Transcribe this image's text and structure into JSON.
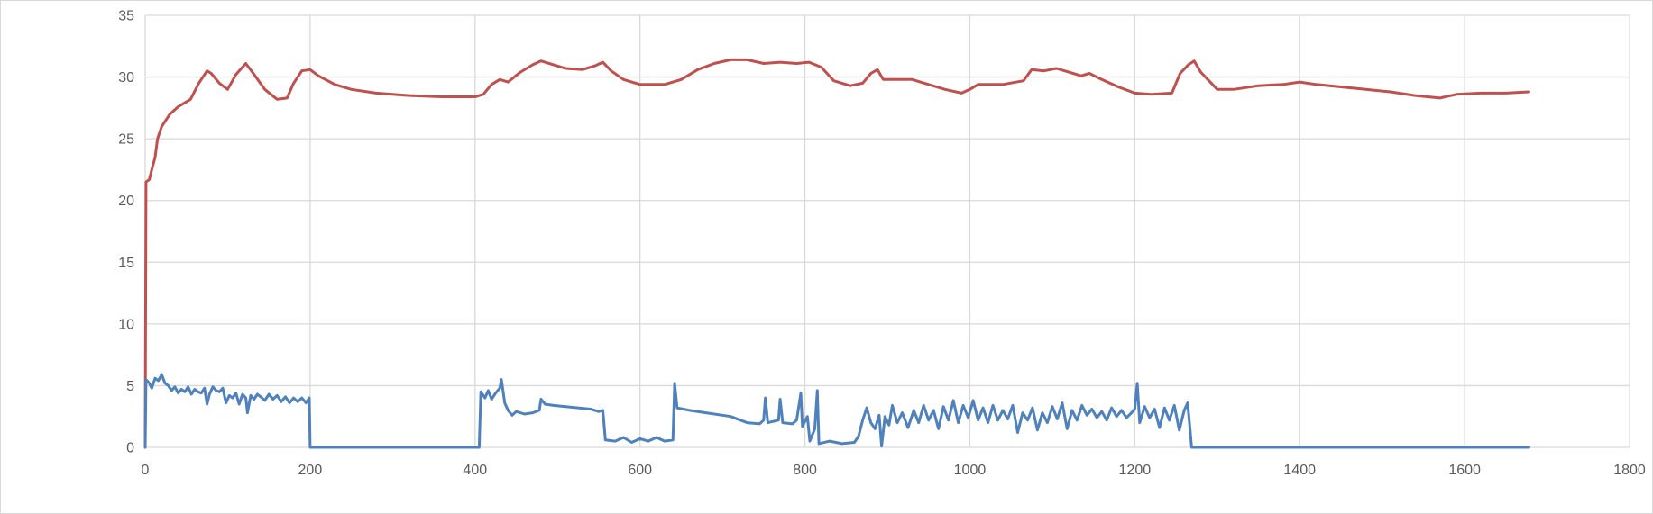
{
  "chart_data": {
    "type": "line",
    "title": "",
    "xlabel": "",
    "ylabel": "",
    "xlim": [
      0,
      1800
    ],
    "ylim": [
      0,
      35
    ],
    "x_ticks": [
      0,
      200,
      400,
      600,
      800,
      1000,
      1200,
      1400,
      1600,
      1800
    ],
    "y_ticks": [
      0,
      5,
      10,
      15,
      20,
      25,
      30,
      35
    ],
    "x_tick_labels": [
      "0",
      "200",
      "400",
      "600",
      "800",
      "1000",
      "1200",
      "1400",
      "1600",
      "1800"
    ],
    "y_tick_labels": [
      "0",
      "5",
      "10",
      "15",
      "20",
      "25",
      "30",
      "35"
    ],
    "grid": true,
    "legend": "none",
    "series": [
      {
        "color": "#c0504d",
        "points": [
          [
            0,
            0
          ],
          [
            1,
            21.5
          ],
          [
            5,
            21.7
          ],
          [
            8,
            22.5
          ],
          [
            12,
            23.5
          ],
          [
            15,
            25
          ],
          [
            20,
            26
          ],
          [
            30,
            27
          ],
          [
            40,
            27.6
          ],
          [
            55,
            28.2
          ],
          [
            65,
            29.5
          ],
          [
            75,
            30.5
          ],
          [
            80,
            30.3
          ],
          [
            90,
            29.5
          ],
          [
            100,
            29.0
          ],
          [
            110,
            30.2
          ],
          [
            122,
            31.1
          ],
          [
            130,
            30.4
          ],
          [
            145,
            29.0
          ],
          [
            160,
            28.2
          ],
          [
            172,
            28.3
          ],
          [
            180,
            29.5
          ],
          [
            190,
            30.5
          ],
          [
            200,
            30.6
          ],
          [
            210,
            30.1
          ],
          [
            230,
            29.4
          ],
          [
            250,
            29.0
          ],
          [
            280,
            28.7
          ],
          [
            320,
            28.5
          ],
          [
            360,
            28.4
          ],
          [
            400,
            28.4
          ],
          [
            410,
            28.6
          ],
          [
            420,
            29.4
          ],
          [
            430,
            29.8
          ],
          [
            440,
            29.6
          ],
          [
            455,
            30.4
          ],
          [
            470,
            31.0
          ],
          [
            480,
            31.3
          ],
          [
            495,
            31.0
          ],
          [
            510,
            30.7
          ],
          [
            530,
            30.6
          ],
          [
            545,
            30.9
          ],
          [
            555,
            31.2
          ],
          [
            565,
            30.5
          ],
          [
            580,
            29.8
          ],
          [
            600,
            29.4
          ],
          [
            630,
            29.4
          ],
          [
            650,
            29.8
          ],
          [
            670,
            30.6
          ],
          [
            690,
            31.1
          ],
          [
            710,
            31.4
          ],
          [
            730,
            31.4
          ],
          [
            750,
            31.1
          ],
          [
            770,
            31.2
          ],
          [
            790,
            31.1
          ],
          [
            805,
            31.2
          ],
          [
            820,
            30.8
          ],
          [
            835,
            29.7
          ],
          [
            855,
            29.3
          ],
          [
            870,
            29.5
          ],
          [
            880,
            30.3
          ],
          [
            888,
            30.6
          ],
          [
            895,
            29.8
          ],
          [
            910,
            29.8
          ],
          [
            930,
            29.8
          ],
          [
            950,
            29.4
          ],
          [
            970,
            29.0
          ],
          [
            990,
            28.7
          ],
          [
            1000,
            29.0
          ],
          [
            1010,
            29.4
          ],
          [
            1040,
            29.4
          ],
          [
            1065,
            29.7
          ],
          [
            1075,
            30.6
          ],
          [
            1090,
            30.5
          ],
          [
            1105,
            30.7
          ],
          [
            1120,
            30.4
          ],
          [
            1135,
            30.1
          ],
          [
            1145,
            30.3
          ],
          [
            1160,
            29.8
          ],
          [
            1180,
            29.2
          ],
          [
            1200,
            28.7
          ],
          [
            1220,
            28.6
          ],
          [
            1245,
            28.7
          ],
          [
            1255,
            30.3
          ],
          [
            1265,
            31.0
          ],
          [
            1272,
            31.3
          ],
          [
            1280,
            30.4
          ],
          [
            1300,
            29.0
          ],
          [
            1320,
            29.0
          ],
          [
            1350,
            29.3
          ],
          [
            1380,
            29.4
          ],
          [
            1400,
            29.6
          ],
          [
            1420,
            29.4
          ],
          [
            1450,
            29.2
          ],
          [
            1480,
            29.0
          ],
          [
            1510,
            28.8
          ],
          [
            1540,
            28.5
          ],
          [
            1570,
            28.3
          ],
          [
            1590,
            28.6
          ],
          [
            1620,
            28.7
          ],
          [
            1650,
            28.7
          ],
          [
            1678,
            28.8
          ]
        ]
      },
      {
        "color": "#4f81bd",
        "points": [
          [
            0,
            0
          ],
          [
            1,
            5.5
          ],
          [
            5,
            5.2
          ],
          [
            8,
            4.8
          ],
          [
            12,
            5.6
          ],
          [
            16,
            5.4
          ],
          [
            20,
            5.9
          ],
          [
            24,
            5.2
          ],
          [
            28,
            5.0
          ],
          [
            32,
            4.6
          ],
          [
            36,
            4.9
          ],
          [
            40,
            4.4
          ],
          [
            44,
            4.7
          ],
          [
            48,
            4.5
          ],
          [
            52,
            4.9
          ],
          [
            56,
            4.3
          ],
          [
            60,
            4.7
          ],
          [
            64,
            4.5
          ],
          [
            68,
            4.4
          ],
          [
            72,
            4.8
          ],
          [
            75,
            3.5
          ],
          [
            78,
            4.3
          ],
          [
            82,
            4.9
          ],
          [
            86,
            4.6
          ],
          [
            90,
            4.5
          ],
          [
            94,
            4.8
          ],
          [
            98,
            3.6
          ],
          [
            102,
            4.2
          ],
          [
            106,
            4.0
          ],
          [
            110,
            4.4
          ],
          [
            114,
            3.5
          ],
          [
            118,
            4.3
          ],
          [
            122,
            4.0
          ],
          [
            124,
            2.8
          ],
          [
            128,
            4.2
          ],
          [
            132,
            3.9
          ],
          [
            136,
            4.3
          ],
          [
            140,
            4.1
          ],
          [
            145,
            3.8
          ],
          [
            150,
            4.3
          ],
          [
            155,
            3.9
          ],
          [
            160,
            4.2
          ],
          [
            165,
            3.7
          ],
          [
            170,
            4.1
          ],
          [
            175,
            3.6
          ],
          [
            180,
            4.0
          ],
          [
            185,
            3.7
          ],
          [
            190,
            4.0
          ],
          [
            195,
            3.6
          ],
          [
            199,
            4.0
          ],
          [
            200,
            0
          ],
          [
            405,
            0
          ],
          [
            407,
            4.5
          ],
          [
            412,
            4.0
          ],
          [
            416,
            4.6
          ],
          [
            420,
            3.9
          ],
          [
            425,
            4.4
          ],
          [
            430,
            4.8
          ],
          [
            432,
            5.5
          ],
          [
            436,
            3.6
          ],
          [
            440,
            3.0
          ],
          [
            445,
            2.6
          ],
          [
            450,
            2.9
          ],
          [
            460,
            2.7
          ],
          [
            470,
            2.8
          ],
          [
            478,
            3.0
          ],
          [
            480,
            3.9
          ],
          [
            485,
            3.5
          ],
          [
            495,
            3.4
          ],
          [
            510,
            3.3
          ],
          [
            525,
            3.2
          ],
          [
            540,
            3.1
          ],
          [
            550,
            2.9
          ],
          [
            555,
            3.0
          ],
          [
            558,
            0.6
          ],
          [
            570,
            0.5
          ],
          [
            580,
            0.8
          ],
          [
            590,
            0.4
          ],
          [
            600,
            0.7
          ],
          [
            610,
            0.5
          ],
          [
            620,
            0.8
          ],
          [
            630,
            0.5
          ],
          [
            640,
            0.6
          ],
          [
            642,
            5.2
          ],
          [
            645,
            3.2
          ],
          [
            660,
            3.0
          ],
          [
            680,
            2.8
          ],
          [
            700,
            2.6
          ],
          [
            710,
            2.5
          ],
          [
            722,
            2.2
          ],
          [
            730,
            2.0
          ],
          [
            745,
            1.9
          ],
          [
            750,
            2.2
          ],
          [
            752,
            4.0
          ],
          [
            755,
            2.0
          ],
          [
            768,
            2.2
          ],
          [
            770,
            3.9
          ],
          [
            773,
            2.0
          ],
          [
            785,
            1.9
          ],
          [
            790,
            2.2
          ],
          [
            795,
            4.4
          ],
          [
            797,
            1.7
          ],
          [
            803,
            2.5
          ],
          [
            806,
            0.5
          ],
          [
            812,
            1.5
          ],
          [
            815,
            4.6
          ],
          [
            817,
            0.3
          ],
          [
            830,
            0.5
          ],
          [
            845,
            0.3
          ],
          [
            860,
            0.4
          ],
          [
            865,
            0.9
          ],
          [
            870,
            2.2
          ],
          [
            875,
            3.2
          ],
          [
            880,
            2.0
          ],
          [
            885,
            1.5
          ],
          [
            890,
            2.6
          ],
          [
            893,
            0.1
          ],
          [
            897,
            2.5
          ],
          [
            902,
            1.8
          ],
          [
            906,
            3.4
          ],
          [
            912,
            2.0
          ],
          [
            918,
            2.8
          ],
          [
            925,
            1.6
          ],
          [
            932,
            3.0
          ],
          [
            938,
            2.0
          ],
          [
            944,
            3.4
          ],
          [
            950,
            2.2
          ],
          [
            956,
            3.0
          ],
          [
            962,
            1.5
          ],
          [
            968,
            3.3
          ],
          [
            974,
            2.2
          ],
          [
            980,
            3.8
          ],
          [
            986,
            2.0
          ],
          [
            992,
            3.4
          ],
          [
            998,
            2.4
          ],
          [
            1004,
            3.8
          ],
          [
            1010,
            2.2
          ],
          [
            1016,
            3.2
          ],
          [
            1022,
            2.0
          ],
          [
            1028,
            3.4
          ],
          [
            1034,
            2.2
          ],
          [
            1040,
            3.0
          ],
          [
            1046,
            2.3
          ],
          [
            1052,
            3.4
          ],
          [
            1058,
            1.2
          ],
          [
            1064,
            2.8
          ],
          [
            1070,
            2.2
          ],
          [
            1076,
            3.2
          ],
          [
            1082,
            1.4
          ],
          [
            1088,
            2.8
          ],
          [
            1094,
            2.0
          ],
          [
            1100,
            3.3
          ],
          [
            1106,
            2.3
          ],
          [
            1112,
            3.6
          ],
          [
            1118,
            1.5
          ],
          [
            1124,
            3.0
          ],
          [
            1130,
            2.2
          ],
          [
            1136,
            3.4
          ],
          [
            1142,
            2.6
          ],
          [
            1148,
            3.1
          ],
          [
            1154,
            2.4
          ],
          [
            1160,
            2.9
          ],
          [
            1166,
            2.2
          ],
          [
            1172,
            3.2
          ],
          [
            1178,
            2.5
          ],
          [
            1184,
            3.0
          ],
          [
            1190,
            2.4
          ],
          [
            1196,
            2.8
          ],
          [
            1200,
            3.1
          ],
          [
            1203,
            5.2
          ],
          [
            1206,
            2.0
          ],
          [
            1212,
            3.3
          ],
          [
            1218,
            2.4
          ],
          [
            1224,
            3.1
          ],
          [
            1230,
            1.6
          ],
          [
            1236,
            3.2
          ],
          [
            1242,
            2.2
          ],
          [
            1248,
            3.4
          ],
          [
            1254,
            1.4
          ],
          [
            1260,
            3.0
          ],
          [
            1264,
            3.6
          ],
          [
            1266,
            2.2
          ],
          [
            1269,
            0
          ],
          [
            1678,
            0
          ]
        ]
      }
    ]
  }
}
